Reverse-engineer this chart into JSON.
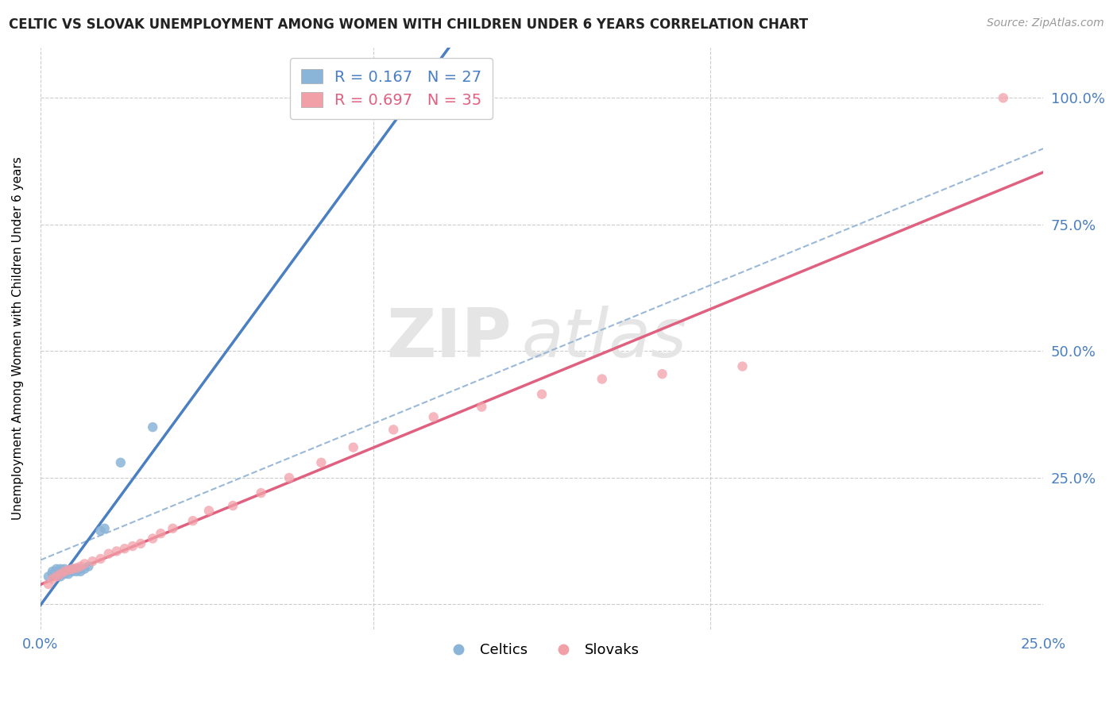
{
  "title": "CELTIC VS SLOVAK UNEMPLOYMENT AMONG WOMEN WITH CHILDREN UNDER 6 YEARS CORRELATION CHART",
  "source": "Source: ZipAtlas.com",
  "ylabel": "Unemployment Among Women with Children Under 6 years",
  "xlim": [
    0.0,
    0.25
  ],
  "ylim": [
    -0.05,
    1.1
  ],
  "xtick_positions": [
    0.0,
    0.05,
    0.1,
    0.15,
    0.2,
    0.25
  ],
  "xtick_labels": [
    "0.0%",
    "",
    "",
    "",
    "",
    "25.0%"
  ],
  "ytick_positions": [
    0.0,
    0.25,
    0.5,
    0.75,
    1.0
  ],
  "ytick_labels": [
    "",
    "25.0%",
    "50.0%",
    "75.0%",
    "100.0%"
  ],
  "celtics_R": 0.167,
  "celtics_N": 27,
  "slovaks_R": 0.697,
  "slovaks_N": 35,
  "celtics_color": "#8ab4d8",
  "slovaks_color": "#f2a0a8",
  "celtics_line_color": "#4a7fc1",
  "slovaks_line_color": "#e06080",
  "dashed_line_color": "#9ab8d8",
  "background_color": "#ffffff",
  "celtics_x": [
    0.002,
    0.003,
    0.003,
    0.004,
    0.004,
    0.004,
    0.005,
    0.005,
    0.005,
    0.005,
    0.006,
    0.006,
    0.006,
    0.007,
    0.007,
    0.008,
    0.008,
    0.009,
    0.009,
    0.01,
    0.01,
    0.011,
    0.012,
    0.015,
    0.016,
    0.02,
    0.028
  ],
  "celtics_y": [
    0.055,
    0.06,
    0.065,
    0.06,
    0.065,
    0.07,
    0.055,
    0.06,
    0.065,
    0.07,
    0.06,
    0.065,
    0.07,
    0.06,
    0.065,
    0.065,
    0.07,
    0.065,
    0.07,
    0.065,
    0.07,
    0.07,
    0.075,
    0.145,
    0.15,
    0.28,
    0.35
  ],
  "slovaks_x": [
    0.002,
    0.003,
    0.004,
    0.005,
    0.006,
    0.007,
    0.008,
    0.009,
    0.01,
    0.011,
    0.013,
    0.015,
    0.017,
    0.019,
    0.021,
    0.023,
    0.025,
    0.028,
    0.03,
    0.033,
    0.038,
    0.042,
    0.048,
    0.055,
    0.062,
    0.07,
    0.078,
    0.088,
    0.098,
    0.11,
    0.125,
    0.14,
    0.155,
    0.175,
    0.24
  ],
  "slovaks_y": [
    0.04,
    0.05,
    0.055,
    0.06,
    0.065,
    0.068,
    0.07,
    0.072,
    0.075,
    0.08,
    0.085,
    0.09,
    0.1,
    0.105,
    0.11,
    0.115,
    0.12,
    0.13,
    0.14,
    0.15,
    0.165,
    0.185,
    0.195,
    0.22,
    0.25,
    0.28,
    0.31,
    0.345,
    0.37,
    0.39,
    0.415,
    0.445,
    0.455,
    0.47,
    1.0
  ]
}
